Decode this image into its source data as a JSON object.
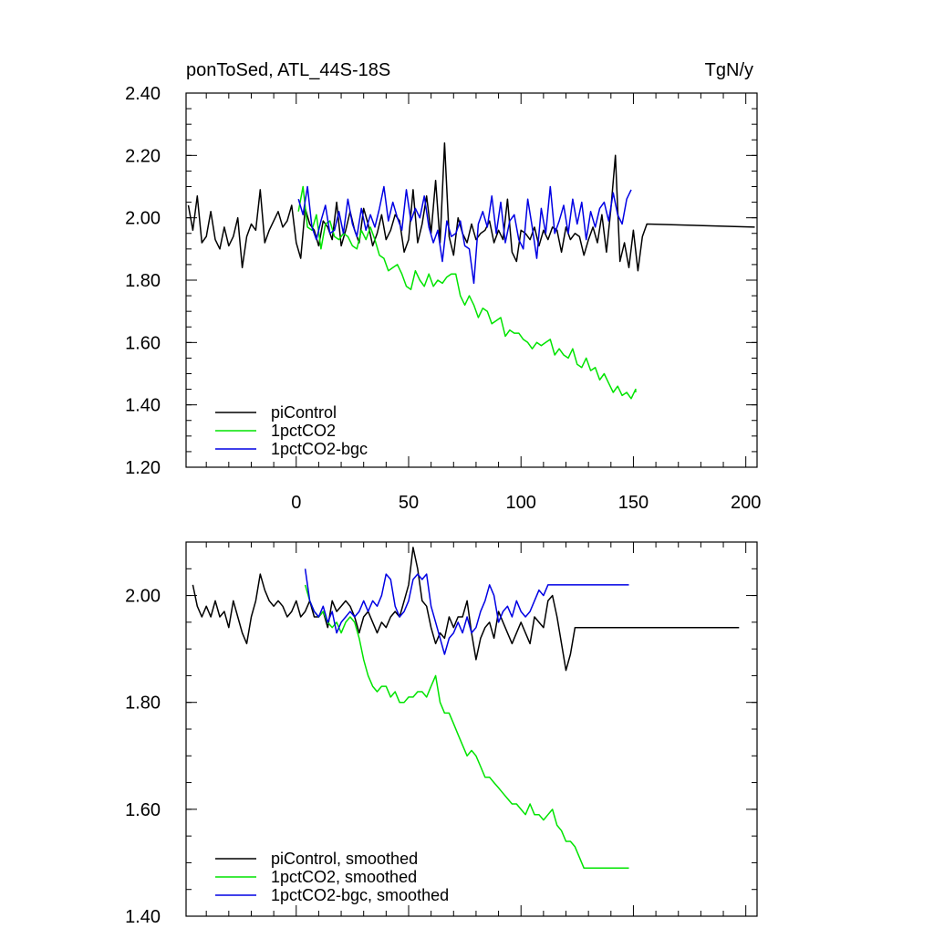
{
  "chart_data": [
    {
      "type": "line",
      "title_left": "ponToSed, ATL_44S-18S",
      "title_right": "TgN/y",
      "xlabel": "",
      "ylabel": "",
      "xlim": [
        -49,
        205
      ],
      "ylim": [
        1.2,
        2.4
      ],
      "x_ticks": [
        0,
        50,
        100,
        150,
        200
      ],
      "x_tick_labels": [
        "0",
        "50",
        "100",
        "150",
        "200"
      ],
      "y_ticks": [
        1.2,
        1.4,
        1.6,
        1.8,
        2.0,
        2.2,
        2.4
      ],
      "y_tick_labels": [
        "1.20",
        "1.40",
        "1.60",
        "1.80",
        "2.00",
        "2.20",
        "2.40"
      ],
      "legend_position": "bottom-left",
      "series": [
        {
          "name": "piControl",
          "color": "#000000",
          "x_start": -48,
          "x_step": 2,
          "values": [
            2.04,
            1.96,
            2.07,
            1.92,
            1.94,
            2.02,
            1.93,
            1.9,
            1.97,
            1.91,
            1.94,
            2.0,
            1.84,
            1.94,
            1.98,
            1.96,
            2.09,
            1.92,
            1.96,
            1.99,
            2.02,
            1.97,
            1.99,
            2.04,
            1.92,
            1.87,
            2.03,
            1.98,
            1.96,
            1.91,
            1.99,
            1.97,
            1.93,
            2.05,
            1.91,
            1.96,
            2.02,
            1.96,
            1.92,
            2.03,
            1.98,
            1.91,
            1.95,
            2.01,
            1.93,
            1.96,
            2.01,
            1.99,
            1.89,
            1.93,
            2.09,
            1.92,
            1.98,
            2.07,
            1.95,
            2.12,
            1.92,
            2.24,
            1.94,
            1.88,
            2.0,
            1.95,
            1.92,
            1.98,
            1.93,
            1.95,
            1.96,
            1.99,
            1.92,
            1.96,
            1.93,
            2.06,
            1.89,
            1.86,
            1.96,
            1.95,
            1.93,
            1.97,
            1.91,
            1.96,
            1.93,
            1.97,
            1.96,
            1.89,
            1.97,
            1.93,
            1.95,
            1.94,
            1.88,
            1.93,
            1.97,
            1.92,
            2.01,
            1.89,
            2.03,
            2.2,
            1.86,
            1.92,
            1.84,
            1.96,
            1.83,
            1.94,
            1.98
          ],
          "end_values": [
            [
              204,
              1.97
            ]
          ]
        },
        {
          "name": "1pctCO2",
          "color": "#00e400",
          "x_start": 1,
          "x_step": 2,
          "values": [
            2.02,
            2.1,
            1.97,
            1.96,
            2.01,
            1.9,
            1.98,
            1.99,
            1.94,
            1.93,
            1.95,
            1.94,
            1.91,
            1.9,
            1.96,
            1.93,
            1.97,
            1.93,
            1.88,
            1.87,
            1.83,
            1.84,
            1.85,
            1.82,
            1.78,
            1.77,
            1.83,
            1.8,
            1.78,
            1.82,
            1.78,
            1.8,
            1.79,
            1.81,
            1.82,
            1.82,
            1.75,
            1.72,
            1.75,
            1.72,
            1.68,
            1.71,
            1.7,
            1.66,
            1.67,
            1.68,
            1.62,
            1.64,
            1.63,
            1.63,
            1.61,
            1.6,
            1.58,
            1.6,
            1.59,
            1.6,
            1.61,
            1.56,
            1.58,
            1.56,
            1.55,
            1.58,
            1.53,
            1.52,
            1.55,
            1.51,
            1.52,
            1.48,
            1.5,
            1.47,
            1.44,
            1.46,
            1.43,
            1.44,
            1.42,
            1.45
          ],
          "end_values": [
            [
              151,
              1.44
            ]
          ]
        },
        {
          "name": "1pctCO2-bgc",
          "color": "#0000e4",
          "x_start": 1,
          "x_step": 2,
          "values": [
            2.06,
            2.01,
            2.1,
            1.97,
            1.93,
            1.99,
            2.04,
            1.95,
            1.96,
            2.02,
            1.95,
            2.06,
            1.98,
            1.94,
            2.03,
            1.96,
            2.01,
            1.97,
            2.03,
            2.1,
            1.99,
            2.05,
            2.0,
            1.96,
            2.09,
            1.99,
            2.03,
            2.0,
            2.07,
            1.97,
            1.92,
            1.96,
            1.86,
            1.99,
            1.94,
            1.95,
            1.99,
            1.91,
            1.9,
            1.79,
            1.98,
            2.02,
            1.97,
            2.07,
            1.95,
            2.05,
            1.92,
            1.99,
            2.01,
            1.93,
            1.9,
            2.06,
            1.97,
            1.87,
            2.03,
            1.95,
            2.1,
            1.95,
            1.99,
            2.04,
            1.95,
            2.06,
            1.98,
            2.05,
            1.93,
            2.02,
            1.97,
            2.03,
            2.05,
            1.99,
            2.08,
            2.01,
            1.98,
            2.06,
            2.09
          ],
          "end_values": []
        }
      ]
    },
    {
      "type": "line",
      "title_left": "",
      "title_right": "",
      "xlabel": "",
      "ylabel": "",
      "xlim": [
        -49,
        205
      ],
      "ylim": [
        1.4,
        2.1
      ],
      "x_ticks": [
        0,
        50,
        100,
        150,
        200
      ],
      "x_tick_labels": [],
      "y_ticks": [
        1.4,
        1.6,
        1.8,
        2.0
      ],
      "y_tick_labels": [
        "1.40",
        "1.60",
        "1.80",
        "2.00"
      ],
      "legend_position": "bottom-left",
      "series": [
        {
          "name": "piControl, smoothed",
          "color": "#000000",
          "x_start": -46,
          "x_step": 2,
          "values": [
            2.02,
            1.98,
            1.96,
            1.98,
            1.96,
            1.99,
            1.96,
            1.97,
            1.94,
            1.99,
            1.96,
            1.93,
            1.91,
            1.96,
            1.99,
            2.04,
            2.01,
            1.99,
            1.98,
            1.99,
            1.98,
            1.96,
            1.97,
            1.99,
            1.96,
            1.97,
            1.99,
            1.96,
            1.96,
            1.97,
            1.94,
            1.99,
            1.97,
            1.98,
            1.99,
            1.98,
            1.96,
            1.93,
            1.96,
            1.97,
            1.95,
            1.93,
            1.95,
            1.94,
            1.96,
            1.97,
            1.96,
            1.99,
            2.02,
            2.09,
            2.05,
            1.99,
            1.98,
            1.94,
            1.91,
            1.93,
            1.92,
            1.96,
            1.94,
            1.96,
            1.96,
            1.99,
            1.93,
            1.88,
            1.92,
            1.94,
            1.95,
            1.92,
            1.97,
            1.95,
            1.93,
            1.91,
            1.93,
            1.95,
            1.93,
            1.91,
            1.96,
            1.95,
            1.94,
            1.99,
            2.0,
            1.96,
            1.91,
            1.86,
            1.89,
            1.94
          ],
          "end_values": [
            [
              197,
              1.94
            ]
          ]
        },
        {
          "name": "1pctCO2, smoothed",
          "color": "#00e400",
          "x_start": 4,
          "x_step": 2,
          "values": [
            2.02,
            1.99,
            1.97,
            1.96,
            1.97,
            1.95,
            1.94,
            1.95,
            1.93,
            1.95,
            1.96,
            1.95,
            1.92,
            1.88,
            1.85,
            1.83,
            1.82,
            1.83,
            1.83,
            1.81,
            1.82,
            1.8,
            1.8,
            1.81,
            1.81,
            1.82,
            1.82,
            1.81,
            1.83,
            1.85,
            1.8,
            1.78,
            1.78,
            1.76,
            1.74,
            1.72,
            1.7,
            1.71,
            1.7,
            1.68,
            1.66,
            1.66,
            1.65,
            1.64,
            1.63,
            1.62,
            1.61,
            1.61,
            1.6,
            1.59,
            1.61,
            1.59,
            1.59,
            1.58,
            1.59,
            1.6,
            1.57,
            1.56,
            1.54,
            1.54,
            1.53,
            1.51,
            1.49
          ],
          "end_values": [
            [
              148,
              1.49
            ]
          ]
        },
        {
          "name": "1pctCO2-bgc, smoothed",
          "color": "#0000e4",
          "x_start": 4,
          "x_step": 2,
          "values": [
            2.05,
            1.99,
            1.97,
            1.96,
            1.98,
            1.95,
            1.97,
            1.93,
            1.95,
            1.96,
            1.97,
            1.96,
            1.97,
            1.99,
            1.97,
            1.99,
            1.98,
            2.0,
            2.04,
            2.03,
            1.98,
            1.96,
            1.97,
            1.99,
            2.03,
            2.04,
            2.03,
            2.04,
            1.98,
            1.95,
            1.92,
            1.89,
            1.92,
            1.93,
            1.95,
            1.93,
            1.96,
            1.93,
            1.94,
            1.97,
            1.99,
            2.02,
            2.0,
            1.95,
            1.97,
            1.98,
            1.96,
            1.99,
            1.97,
            1.96,
            1.97,
            1.99,
            2.01,
            2.0,
            2.02
          ],
          "end_values": [
            [
              148,
              2.02
            ]
          ]
        }
      ]
    }
  ]
}
